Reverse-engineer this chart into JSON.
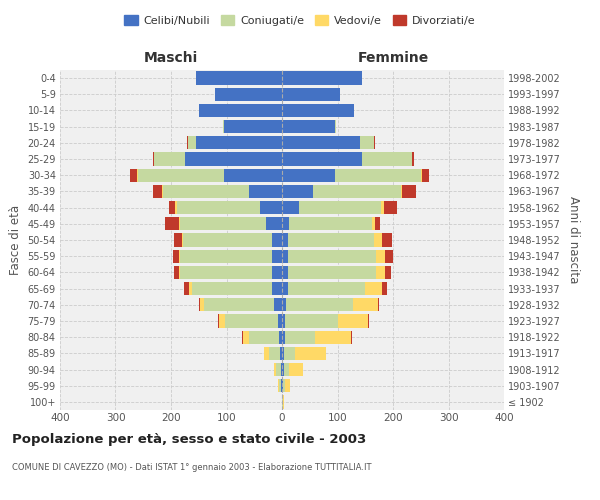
{
  "age_groups": [
    "100+",
    "95-99",
    "90-94",
    "85-89",
    "80-84",
    "75-79",
    "70-74",
    "65-69",
    "60-64",
    "55-59",
    "50-54",
    "45-49",
    "40-44",
    "35-39",
    "30-34",
    "25-29",
    "20-24",
    "15-19",
    "10-14",
    "5-9",
    "0-4"
  ],
  "birth_years": [
    "≤ 1902",
    "1903-1907",
    "1908-1912",
    "1913-1917",
    "1918-1922",
    "1923-1927",
    "1928-1932",
    "1933-1937",
    "1938-1942",
    "1943-1947",
    "1948-1952",
    "1953-1957",
    "1958-1962",
    "1963-1967",
    "1968-1972",
    "1973-1977",
    "1978-1982",
    "1983-1987",
    "1988-1992",
    "1993-1997",
    "1998-2002"
  ],
  "males": {
    "celibe": [
      0,
      2,
      2,
      3,
      5,
      8,
      15,
      18,
      18,
      18,
      18,
      28,
      40,
      60,
      105,
      175,
      155,
      105,
      150,
      120,
      155
    ],
    "coniugato": [
      0,
      3,
      8,
      20,
      55,
      95,
      125,
      145,
      165,
      165,
      160,
      155,
      150,
      155,
      155,
      55,
      15,
      2,
      0,
      0,
      0
    ],
    "vedovo": [
      0,
      2,
      5,
      10,
      10,
      10,
      8,
      5,
      2,
      2,
      2,
      2,
      2,
      2,
      2,
      0,
      0,
      0,
      0,
      0,
      0
    ],
    "divorziato": [
      0,
      0,
      0,
      0,
      2,
      2,
      2,
      8,
      10,
      12,
      15,
      25,
      12,
      15,
      12,
      2,
      2,
      0,
      0,
      0,
      0
    ]
  },
  "females": {
    "nubile": [
      0,
      2,
      4,
      4,
      5,
      5,
      8,
      10,
      10,
      10,
      10,
      12,
      30,
      55,
      95,
      145,
      140,
      95,
      130,
      105,
      145
    ],
    "coniugata": [
      2,
      4,
      8,
      20,
      55,
      95,
      120,
      140,
      160,
      160,
      155,
      150,
      148,
      160,
      155,
      90,
      25,
      2,
      0,
      0,
      0
    ],
    "vedova": [
      2,
      8,
      25,
      55,
      65,
      55,
      45,
      30,
      15,
      15,
      15,
      5,
      5,
      2,
      2,
      0,
      0,
      0,
      0,
      0,
      0
    ],
    "divorziata": [
      0,
      0,
      0,
      0,
      2,
      2,
      2,
      10,
      12,
      15,
      18,
      10,
      25,
      25,
      12,
      2,
      2,
      0,
      0,
      0,
      0
    ]
  },
  "colors": {
    "celibe": "#4472C4",
    "coniugato": "#C5D9A0",
    "vedovo": "#FFD966",
    "divorziato": "#C0392B"
  },
  "xlim": 400,
  "title": "Popolazione per età, sesso e stato civile - 2003",
  "subtitle": "COMUNE DI CAVEZZO (MO) - Dati ISTAT 1° gennaio 2003 - Elaborazione TUTTITALIA.IT",
  "ylabel_left": "Fasce di età",
  "ylabel_right": "Anni di nascita",
  "xlabel_left": "Maschi",
  "xlabel_right": "Femmine",
  "legend_labels": [
    "Celibi/Nubili",
    "Coniugati/e",
    "Vedovi/e",
    "Divorziati/e"
  ],
  "background_color": "#ffffff",
  "plot_bg_color": "#f0f0f0",
  "grid_color": "#cccccc"
}
